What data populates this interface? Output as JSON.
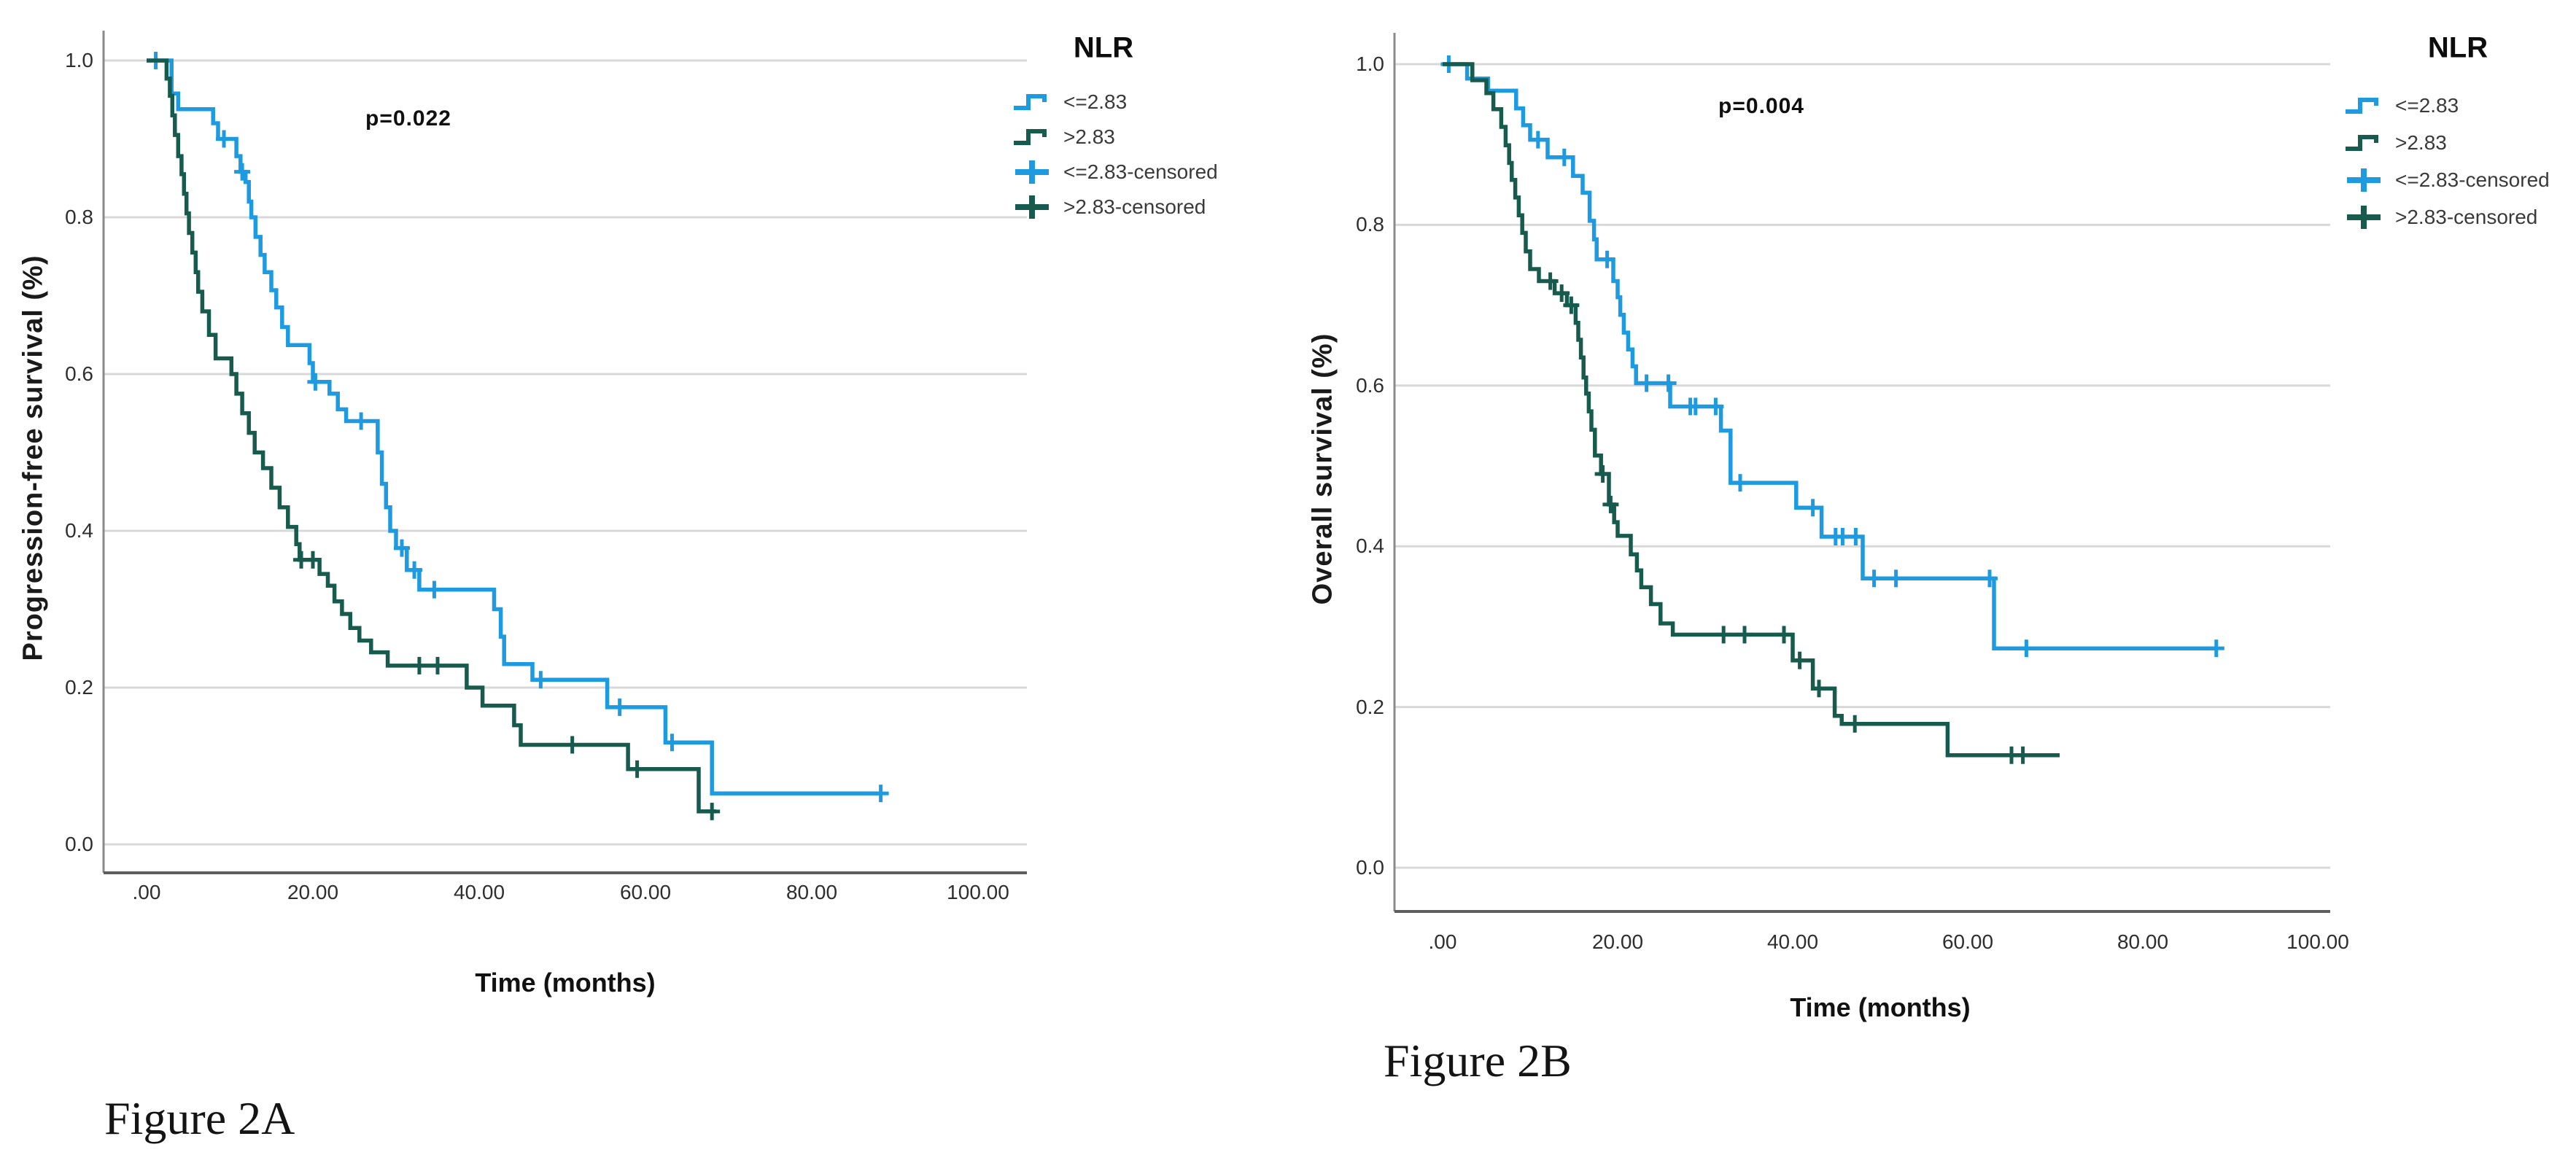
{
  "colors": {
    "blue": "#1D9AE0",
    "green": "#175B4E",
    "grid": "#D8D8D8",
    "axis_y": "#8A8A8A",
    "axis_x": "#5F5F5F",
    "text": "#1a1a1a"
  },
  "legend": {
    "title": "NLR",
    "entries": [
      {
        "label": "<=2.83",
        "color": "blue",
        "marker": "step"
      },
      {
        "label": ">2.83",
        "color": "green",
        "marker": "step"
      },
      {
        "label": "<=2.83-censored",
        "color": "blue",
        "marker": "plus"
      },
      {
        "label": ">2.83-censored",
        "color": "green",
        "marker": "plus"
      }
    ]
  },
  "chart_data": [
    {
      "type": "line",
      "subtype": "kaplan-meier-step",
      "caption": "Figure 2A",
      "xlabel": "Time (months)",
      "ylabel": "Progression-free survival (%)",
      "xlim": [
        0,
        106
      ],
      "ylim": [
        0,
        1.0
      ],
      "x_ticks": [
        ".00",
        "20.00",
        "40.00",
        "60.00",
        "80.00",
        "100.00"
      ],
      "x_tick_values": [
        0,
        20,
        40,
        60,
        80,
        100
      ],
      "y_ticks": [
        "0.0",
        "0.2",
        "0.4",
        "0.6",
        "0.8",
        "1.0"
      ],
      "y_tick_values": [
        0,
        0.2,
        0.4,
        0.6,
        0.8,
        1.0
      ],
      "grid": true,
      "legend_position": "right-top",
      "annotations": [
        {
          "text": "p=0.022"
        }
      ],
      "series": [
        {
          "name": "<=2.83",
          "color": "blue",
          "points": [
            [
              0,
              1.0
            ],
            [
              3,
              0.958
            ],
            [
              3.8,
              0.938
            ],
            [
              8,
              0.92
            ],
            [
              8.6,
              0.9
            ],
            [
              10.8,
              0.878
            ],
            [
              11.3,
              0.858
            ],
            [
              11.9,
              0.845
            ],
            [
              12.3,
              0.82
            ],
            [
              12.6,
              0.8
            ],
            [
              13.1,
              0.775
            ],
            [
              13.7,
              0.752
            ],
            [
              14.2,
              0.73
            ],
            [
              15,
              0.707
            ],
            [
              15.6,
              0.685
            ],
            [
              16.3,
              0.66
            ],
            [
              17,
              0.637
            ],
            [
              19.6,
              0.614
            ],
            [
              20,
              0.59
            ],
            [
              22,
              0.575
            ],
            [
              23,
              0.555
            ],
            [
              24,
              0.54
            ],
            [
              27.8,
              0.5
            ],
            [
              28.3,
              0.46
            ],
            [
              28.8,
              0.43
            ],
            [
              29.3,
              0.4
            ],
            [
              30,
              0.378
            ],
            [
              31.3,
              0.35
            ],
            [
              32.8,
              0.325
            ],
            [
              41.8,
              0.3
            ],
            [
              42.6,
              0.265
            ],
            [
              43,
              0.23
            ],
            [
              46.4,
              0.21
            ],
            [
              55.4,
              0.175
            ],
            [
              62.4,
              0.13
            ],
            [
              68,
              0.065
            ],
            [
              88.3,
              0.065
            ]
          ],
          "censored": [
            [
              1.1,
              1.0
            ],
            [
              9.3,
              0.9
            ],
            [
              11.5,
              0.858
            ],
            [
              20.3,
              0.59
            ],
            [
              25.8,
              0.54
            ],
            [
              30.7,
              0.378
            ],
            [
              32.2,
              0.35
            ],
            [
              34.6,
              0.325
            ],
            [
              47.4,
              0.21
            ],
            [
              56.9,
              0.175
            ],
            [
              63.2,
              0.13
            ],
            [
              88.3,
              0.065
            ]
          ]
        },
        {
          "name": ">2.83",
          "color": "green",
          "points": [
            [
              0,
              1.0
            ],
            [
              2.4,
              0.977
            ],
            [
              2.8,
              0.955
            ],
            [
              3.1,
              0.93
            ],
            [
              3.4,
              0.905
            ],
            [
              3.8,
              0.878
            ],
            [
              4.2,
              0.855
            ],
            [
              4.5,
              0.83
            ],
            [
              4.8,
              0.805
            ],
            [
              5.1,
              0.78
            ],
            [
              5.5,
              0.755
            ],
            [
              5.9,
              0.73
            ],
            [
              6.2,
              0.705
            ],
            [
              6.7,
              0.68
            ],
            [
              7.5,
              0.65
            ],
            [
              8.3,
              0.62
            ],
            [
              10.2,
              0.6
            ],
            [
              10.8,
              0.575
            ],
            [
              11.5,
              0.55
            ],
            [
              12.3,
              0.525
            ],
            [
              13,
              0.5
            ],
            [
              14,
              0.48
            ],
            [
              15,
              0.455
            ],
            [
              16,
              0.43
            ],
            [
              17,
              0.405
            ],
            [
              18,
              0.383
            ],
            [
              18.4,
              0.363
            ],
            [
              20.8,
              0.345
            ],
            [
              21.8,
              0.33
            ],
            [
              22.6,
              0.31
            ],
            [
              23.5,
              0.294
            ],
            [
              24.5,
              0.276
            ],
            [
              25.6,
              0.26
            ],
            [
              27,
              0.245
            ],
            [
              29,
              0.228
            ],
            [
              38.5,
              0.2
            ],
            [
              40.4,
              0.177
            ],
            [
              44.2,
              0.152
            ],
            [
              45,
              0.127
            ],
            [
              57.9,
              0.096
            ],
            [
              66.4,
              0.042
            ],
            [
              68.5,
              0.042
            ]
          ],
          "censored": [
            [
              18.6,
              0.363
            ],
            [
              20,
              0.363
            ],
            [
              32.8,
              0.228
            ],
            [
              35,
              0.228
            ],
            [
              51.2,
              0.127
            ],
            [
              59,
              0.096
            ],
            [
              68,
              0.042
            ]
          ]
        }
      ]
    },
    {
      "type": "line",
      "subtype": "kaplan-meier-step",
      "caption": "Figure 2B",
      "xlabel": "Time (months)",
      "ylabel": "Overall survival (%)",
      "xlim": [
        0,
        106
      ],
      "ylim": [
        0,
        1.0
      ],
      "x_ticks": [
        ".00",
        "20.00",
        "40.00",
        "60.00",
        "80.00",
        "100.00"
      ],
      "x_tick_values": [
        0,
        20,
        40,
        60,
        80,
        100
      ],
      "y_ticks": [
        "0.0",
        "0.2",
        "0.4",
        "0.6",
        "0.8",
        "1.0"
      ],
      "y_tick_values": [
        0,
        0.2,
        0.4,
        0.6,
        0.8,
        1.0
      ],
      "grid": true,
      "legend_position": "right-top",
      "annotations": [
        {
          "text": "p=0.004"
        }
      ],
      "series": [
        {
          "name": "<=2.83",
          "color": "blue",
          "points": [
            [
              0,
              1.0
            ],
            [
              2.8,
              0.982
            ],
            [
              5.2,
              0.967
            ],
            [
              8.4,
              0.945
            ],
            [
              9.2,
              0.924
            ],
            [
              10,
              0.906
            ],
            [
              12,
              0.884
            ],
            [
              14.9,
              0.861
            ],
            [
              16,
              0.84
            ],
            [
              16.8,
              0.805
            ],
            [
              17.3,
              0.782
            ],
            [
              17.6,
              0.757
            ],
            [
              19.5,
              0.73
            ],
            [
              20,
              0.71
            ],
            [
              20.3,
              0.688
            ],
            [
              20.7,
              0.666
            ],
            [
              21.2,
              0.645
            ],
            [
              21.7,
              0.624
            ],
            [
              22.1,
              0.603
            ],
            [
              26,
              0.574
            ],
            [
              31.8,
              0.544
            ],
            [
              32.9,
              0.479
            ],
            [
              40.4,
              0.448
            ],
            [
              43.3,
              0.412
            ],
            [
              48,
              0.36
            ],
            [
              63,
              0.273
            ],
            [
              88.5,
              0.273
            ]
          ],
          "censored": [
            [
              0.7,
              1.0
            ],
            [
              10.9,
              0.906
            ],
            [
              13.9,
              0.884
            ],
            [
              18.8,
              0.757
            ],
            [
              23.3,
              0.603
            ],
            [
              25.8,
              0.603
            ],
            [
              28.3,
              0.574
            ],
            [
              28.9,
              0.574
            ],
            [
              31.2,
              0.574
            ],
            [
              34,
              0.479
            ],
            [
              42.3,
              0.448
            ],
            [
              44.9,
              0.412
            ],
            [
              45.7,
              0.412
            ],
            [
              47.2,
              0.412
            ],
            [
              49.3,
              0.36
            ],
            [
              51.8,
              0.36
            ],
            [
              62.5,
              0.36
            ],
            [
              66.7,
              0.273
            ],
            [
              88.4,
              0.273
            ]
          ]
        },
        {
          "name": ">2.83",
          "color": "green",
          "points": [
            [
              0,
              1.0
            ],
            [
              3.4,
              0.98
            ],
            [
              5,
              0.964
            ],
            [
              5.8,
              0.944
            ],
            [
              6.7,
              0.922
            ],
            [
              7.2,
              0.899
            ],
            [
              7.6,
              0.877
            ],
            [
              7.9,
              0.856
            ],
            [
              8.3,
              0.834
            ],
            [
              8.7,
              0.812
            ],
            [
              9.1,
              0.79
            ],
            [
              9.5,
              0.767
            ],
            [
              10,
              0.745
            ],
            [
              11,
              0.73
            ],
            [
              12.8,
              0.715
            ],
            [
              14.2,
              0.7
            ],
            [
              15.2,
              0.678
            ],
            [
              15.5,
              0.657
            ],
            [
              15.8,
              0.635
            ],
            [
              16.1,
              0.61
            ],
            [
              16.4,
              0.59
            ],
            [
              16.7,
              0.568
            ],
            [
              17,
              0.545
            ],
            [
              17.4,
              0.513
            ],
            [
              18.1,
              0.49
            ],
            [
              19,
              0.452
            ],
            [
              19.6,
              0.43
            ],
            [
              20,
              0.413
            ],
            [
              21.5,
              0.39
            ],
            [
              22.2,
              0.37
            ],
            [
              22.7,
              0.349
            ],
            [
              23.8,
              0.328
            ],
            [
              24.9,
              0.304
            ],
            [
              26.3,
              0.29
            ],
            [
              40,
              0.258
            ],
            [
              42.3,
              0.223
            ],
            [
              44.8,
              0.189
            ],
            [
              45.6,
              0.179
            ],
            [
              57.7,
              0.14
            ],
            [
              70.5,
              0.14
            ]
          ],
          "censored": [
            [
              12.3,
              0.73
            ],
            [
              13.6,
              0.715
            ],
            [
              14.7,
              0.7
            ],
            [
              18.3,
              0.49
            ],
            [
              19.2,
              0.452
            ],
            [
              32.1,
              0.29
            ],
            [
              34.5,
              0.29
            ],
            [
              39,
              0.29
            ],
            [
              40.8,
              0.258
            ],
            [
              43,
              0.223
            ],
            [
              47.1,
              0.179
            ],
            [
              65,
              0.14
            ],
            [
              66.3,
              0.14
            ]
          ]
        }
      ]
    }
  ]
}
